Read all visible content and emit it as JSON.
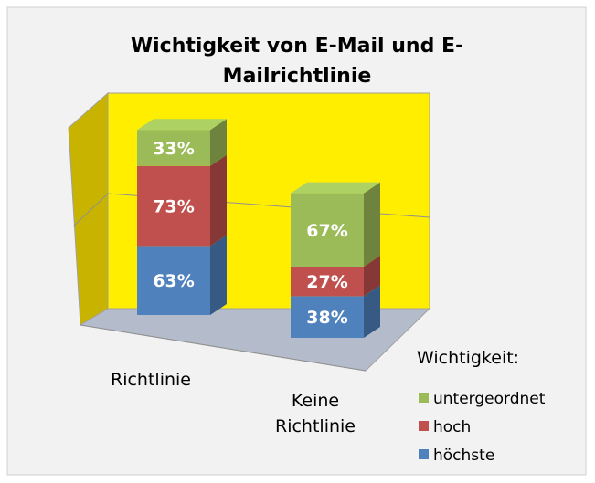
{
  "chart_data": {
    "type": "bar3d_stacked",
    "title": "Wichtigkeit von E-Mail und E-Mailrichtlinie",
    "legend_title": "Wichtigkeit:",
    "categories": [
      "Richtlinie",
      "Keine Richtlinie"
    ],
    "series": [
      {
        "name": "höchste",
        "color": "#4f81bd",
        "values": [
          63,
          38
        ],
        "value_labels": [
          "63%",
          "38%"
        ]
      },
      {
        "name": "hoch",
        "color": "#c0504d",
        "values": [
          73,
          27
        ],
        "value_labels": [
          "73%",
          "27%"
        ]
      },
      {
        "name": "untergeordnet",
        "color": "#9bbb59",
        "values": [
          33,
          67
        ],
        "value_labels": [
          "33%",
          "67%"
        ]
      }
    ]
  }
}
